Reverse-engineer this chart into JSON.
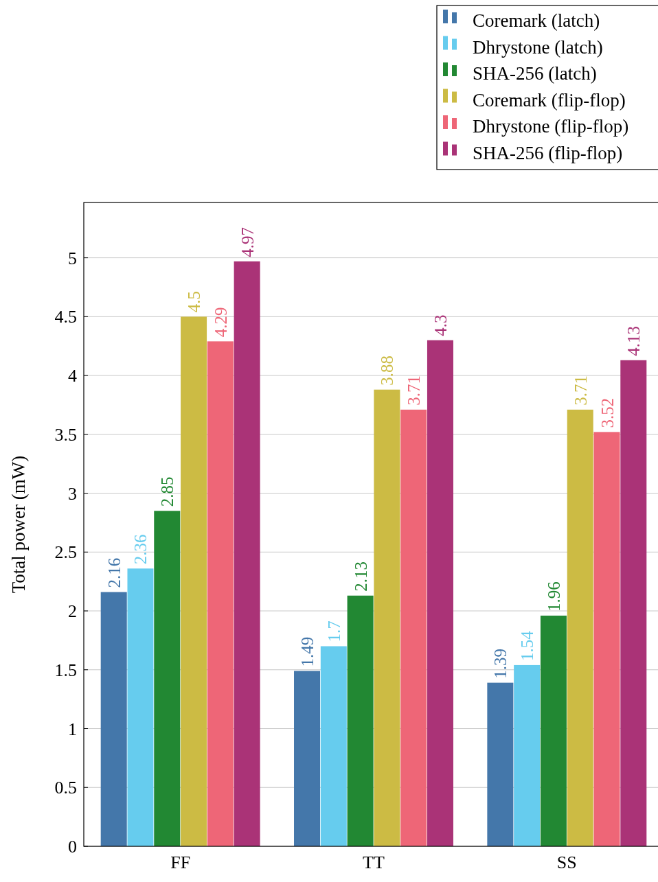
{
  "chart_data": {
    "type": "bar",
    "ylabel": "Total power (mW)",
    "categories": [
      "FF",
      "TT",
      "SS"
    ],
    "series": [
      {
        "name": "Coremark (latch)",
        "color": "#4477aa",
        "values": [
          2.16,
          1.49,
          1.39
        ]
      },
      {
        "name": "Dhrystone (latch)",
        "color": "#66ccee",
        "values": [
          2.36,
          1.7,
          1.54
        ]
      },
      {
        "name": "SHA-256 (latch)",
        "color": "#228833",
        "values": [
          2.85,
          2.13,
          1.96
        ]
      },
      {
        "name": "Coremark (flip-flop)",
        "color": "#ccbb44",
        "values": [
          4.5,
          3.88,
          3.71
        ]
      },
      {
        "name": "Dhrystone (flip-flop)",
        "color": "#ee6677",
        "values": [
          4.29,
          3.71,
          3.52
        ]
      },
      {
        "name": "SHA-256 (flip-flop)",
        "color": "#aa3377",
        "values": [
          4.97,
          4.3,
          4.13
        ]
      }
    ],
    "ylim": [
      0,
      5.47
    ],
    "yticks": [
      0,
      0.5,
      1,
      1.5,
      2,
      2.5,
      3,
      3.5,
      4,
      4.5,
      5
    ],
    "grid": "y",
    "legend": "top right",
    "data_labels": true
  }
}
